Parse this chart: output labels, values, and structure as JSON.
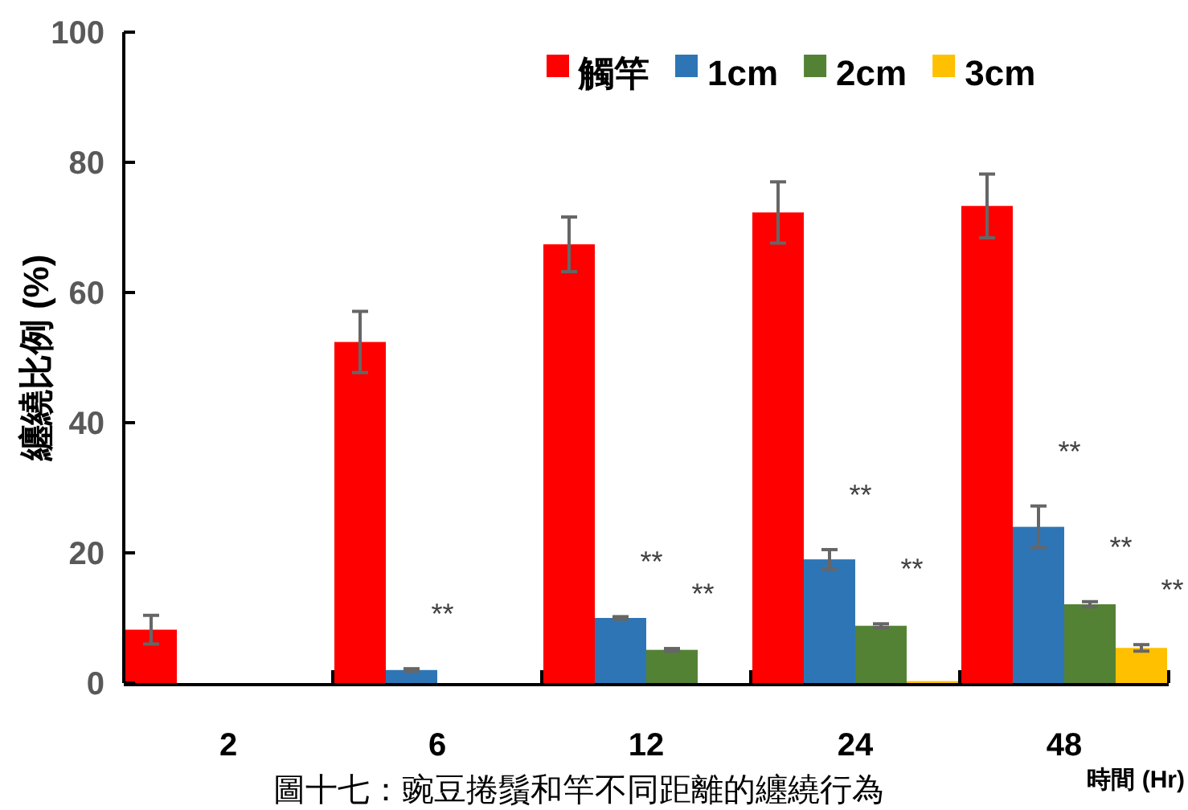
{
  "chart_data": {
    "type": "bar",
    "ylabel": "纏繞比例 (%)",
    "xlabel": "時間 (Hr)",
    "categories": [
      "2",
      "6",
      "12",
      "24",
      "48"
    ],
    "series": [
      {
        "name": "觸竿",
        "color": "#ff0000",
        "values": [
          8.2,
          52.4,
          67.4,
          72.3,
          73.3
        ],
        "errors": [
          2.2,
          4.7,
          4.2,
          4.7,
          4.9
        ]
      },
      {
        "name": "1cm",
        "color": "#2e75b6",
        "values": [
          0,
          2.0,
          10.0,
          19.0,
          24.0
        ],
        "errors": [
          null,
          0.2,
          0.2,
          1.5,
          3.2
        ]
      },
      {
        "name": "2cm",
        "color": "#548235",
        "values": [
          0,
          0,
          5.1,
          8.8,
          12.1
        ],
        "errors": [
          null,
          null,
          0.2,
          0.3,
          0.4
        ]
      },
      {
        "name": "3cm",
        "color": "#ffc000",
        "values": [
          0,
          0,
          0,
          0.3,
          5.4
        ],
        "errors": [
          null,
          null,
          null,
          null,
          0.5
        ]
      }
    ],
    "ylim": [
      0,
      100
    ],
    "yticks": [
      0,
      20,
      40,
      60,
      80,
      100
    ],
    "grid": false,
    "legend": "top right",
    "annotations": [
      "**",
      "**",
      "**",
      "**",
      "**",
      "**",
      "**",
      "**",
      "圖十七：豌豆捲鬚和竿不同距離的纏繞行為"
    ]
  }
}
